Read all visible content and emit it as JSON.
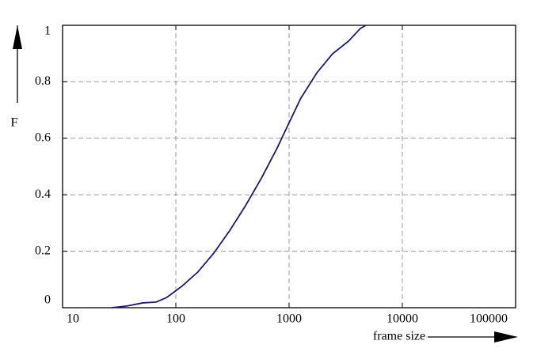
{
  "chart_data": {
    "type": "line",
    "x_label": "frame size",
    "y_label": "F",
    "x": [
      27,
      37,
      51,
      67,
      83,
      113,
      156,
      216,
      298,
      412,
      570,
      786,
      1000,
      1270,
      1760,
      2420,
      3350,
      4260,
      4770
    ],
    "series": [
      {
        "color": "#1a1a6e",
        "values": [
          0,
          0.006,
          0.017,
          0.02,
          0.036,
          0.076,
          0.126,
          0.193,
          0.272,
          0.361,
          0.459,
          0.566,
          0.655,
          0.742,
          0.832,
          0.899,
          0.944,
          0.989,
          1
        ]
      }
    ],
    "xlim": [
      10,
      100000
    ],
    "xticks": [
      10,
      100,
      1000,
      10000,
      100000
    ],
    "xscale": "log",
    "ylim": [
      0,
      1
    ],
    "yticks": [
      0,
      0.2,
      0.4,
      0.6,
      0.8,
      1
    ],
    "grid": true
  }
}
